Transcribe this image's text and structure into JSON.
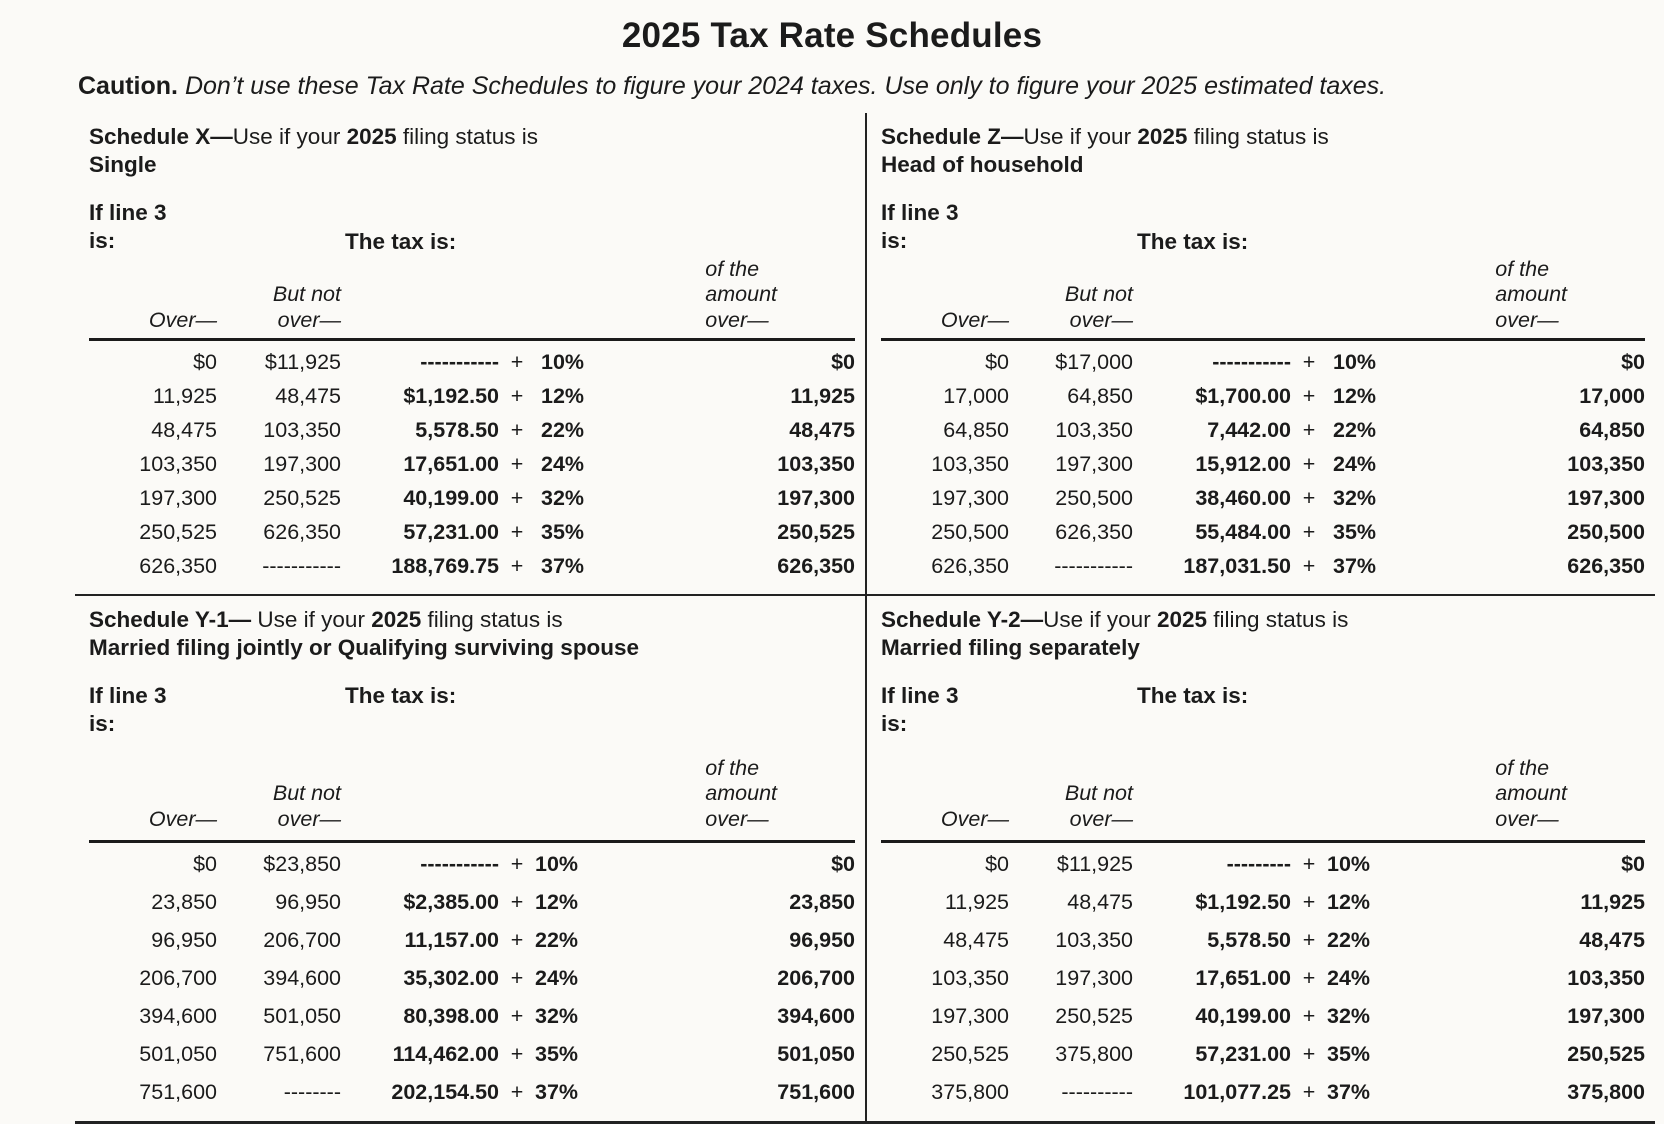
{
  "page": {
    "title": "2025 Tax Rate Schedules",
    "caution_label": "Caution.",
    "caution_text": "Don’t use these Tax Rate Schedules to figure your 2024 taxes. Use only to figure your 2025 estimated taxes."
  },
  "labels": {
    "if_line3_line1": "If line 3",
    "if_line3_line2": "is:",
    "tax_is": "The tax is:",
    "over": "Over—",
    "but_not_line1": "But not",
    "but_not_line2": "over—",
    "of_the": "of the",
    "amount": "amount",
    "over_dash": "over—"
  },
  "schedules": [
    {
      "id": "schedule-x",
      "title_prefix": "Schedule X—",
      "title_mid1": "Use if your ",
      "title_year": "2025",
      "title_mid2": " filing status is",
      "status": "Single",
      "rows": [
        {
          "over": "$0",
          "but_not_over": "$11,925",
          "tax": "-----------",
          "plus": "+",
          "rate": "10%",
          "of_amount_over": "$0"
        },
        {
          "over": "11,925",
          "but_not_over": "48,475",
          "tax": "$1,192.50",
          "plus": "+",
          "rate": "12%",
          "of_amount_over": "11,925"
        },
        {
          "over": "48,475",
          "but_not_over": "103,350",
          "tax": "5,578.50",
          "plus": "+",
          "rate": "22%",
          "of_amount_over": "48,475"
        },
        {
          "over": "103,350",
          "but_not_over": "197,300",
          "tax": "17,651.00",
          "plus": "+",
          "rate": "24%",
          "of_amount_over": "103,350"
        },
        {
          "over": "197,300",
          "but_not_over": "250,525",
          "tax": "40,199.00",
          "plus": "+",
          "rate": "32%",
          "of_amount_over": "197,300"
        },
        {
          "over": "250,525",
          "but_not_over": "626,350",
          "tax": "57,231.00",
          "plus": "+",
          "rate": "35%",
          "of_amount_over": "250,525"
        },
        {
          "over": "626,350",
          "but_not_over": "-----------",
          "tax": "188,769.75",
          "plus": "+",
          "rate": "37%",
          "of_amount_over": "626,350"
        }
      ]
    },
    {
      "id": "schedule-z",
      "title_prefix": "Schedule Z—",
      "title_mid1": "Use if your ",
      "title_year": "2025",
      "title_mid2": " filing status is",
      "status": "Head of household",
      "rows": [
        {
          "over": "$0",
          "but_not_over": "$17,000",
          "tax": "-----------",
          "plus": "+",
          "rate": "10%",
          "of_amount_over": "$0"
        },
        {
          "over": "17,000",
          "but_not_over": "64,850",
          "tax": "$1,700.00",
          "plus": "+",
          "rate": "12%",
          "of_amount_over": "17,000"
        },
        {
          "over": "64,850",
          "but_not_over": "103,350",
          "tax": "7,442.00",
          "plus": "+",
          "rate": "22%",
          "of_amount_over": "64,850"
        },
        {
          "over": "103,350",
          "but_not_over": "197,300",
          "tax": "15,912.00",
          "plus": "+",
          "rate": "24%",
          "of_amount_over": "103,350"
        },
        {
          "over": "197,300",
          "but_not_over": "250,500",
          "tax": "38,460.00",
          "plus": "+",
          "rate": "32%",
          "of_amount_over": "197,300"
        },
        {
          "over": "250,500",
          "but_not_over": "626,350",
          "tax": "55,484.00",
          "plus": "+",
          "rate": "35%",
          "of_amount_over": "250,500"
        },
        {
          "over": "626,350",
          "but_not_over": "-----------",
          "tax": "187,031.50",
          "plus": "+",
          "rate": "37%",
          "of_amount_over": "626,350"
        }
      ]
    },
    {
      "id": "schedule-y1",
      "title_prefix": "Schedule Y-1— ",
      "title_mid1": "Use if your ",
      "title_year": "2025",
      "title_mid2": " filing status is",
      "status": "Married filing jointly or Qualifying surviving spouse",
      "rows": [
        {
          "over": "$0",
          "but_not_over": "$23,850",
          "tax": "-----------",
          "plus": "+",
          "rate": "10%",
          "of_amount_over": "$0"
        },
        {
          "over": "23,850",
          "but_not_over": "96,950",
          "tax": "$2,385.00",
          "plus": "+",
          "rate": "12%",
          "of_amount_over": "23,850"
        },
        {
          "over": "96,950",
          "but_not_over": "206,700",
          "tax": "11,157.00",
          "plus": "+",
          "rate": "22%",
          "of_amount_over": "96,950"
        },
        {
          "over": "206,700",
          "but_not_over": "394,600",
          "tax": "35,302.00",
          "plus": "+",
          "rate": "24%",
          "of_amount_over": "206,700"
        },
        {
          "over": "394,600",
          "but_not_over": "501,050",
          "tax": "80,398.00",
          "plus": "+",
          "rate": "32%",
          "of_amount_over": "394,600"
        },
        {
          "over": "501,050",
          "but_not_over": "751,600",
          "tax": "114,462.00",
          "plus": "+",
          "rate": "35%",
          "of_amount_over": "501,050"
        },
        {
          "over": "751,600",
          "but_not_over": "--------",
          "tax": "202,154.50",
          "plus": "+",
          "rate": "37%",
          "of_amount_over": "751,600"
        }
      ]
    },
    {
      "id": "schedule-y2",
      "title_prefix": "Schedule Y-2—",
      "title_mid1": "Use if your ",
      "title_year": "2025",
      "title_mid2": " filing status is",
      "status": "Married filing separately",
      "rows": [
        {
          "over": "$0",
          "but_not_over": "$11,925",
          "tax": "---------",
          "plus": "+",
          "rate": "10%",
          "of_amount_over": "$0"
        },
        {
          "over": "11,925",
          "but_not_over": "48,475",
          "tax": "$1,192.50",
          "plus": "+",
          "rate": "12%",
          "of_amount_over": "11,925"
        },
        {
          "over": "48,475",
          "but_not_over": "103,350",
          "tax": "5,578.50",
          "plus": "+",
          "rate": "22%",
          "of_amount_over": "48,475"
        },
        {
          "over": "103,350",
          "but_not_over": "197,300",
          "tax": "17,651.00",
          "plus": "+",
          "rate": "24%",
          "of_amount_over": "103,350"
        },
        {
          "over": "197,300",
          "but_not_over": "250,525",
          "tax": "40,199.00",
          "plus": "+",
          "rate": "32%",
          "of_amount_over": "197,300"
        },
        {
          "over": "250,525",
          "but_not_over": "375,800",
          "tax": "57,231.00",
          "plus": "+",
          "rate": "35%",
          "of_amount_over": "250,525"
        },
        {
          "over": "375,800",
          "but_not_over": "----------",
          "tax": "101,077.25",
          "plus": "+",
          "rate": "37%",
          "of_amount_over": "375,800"
        }
      ]
    }
  ]
}
